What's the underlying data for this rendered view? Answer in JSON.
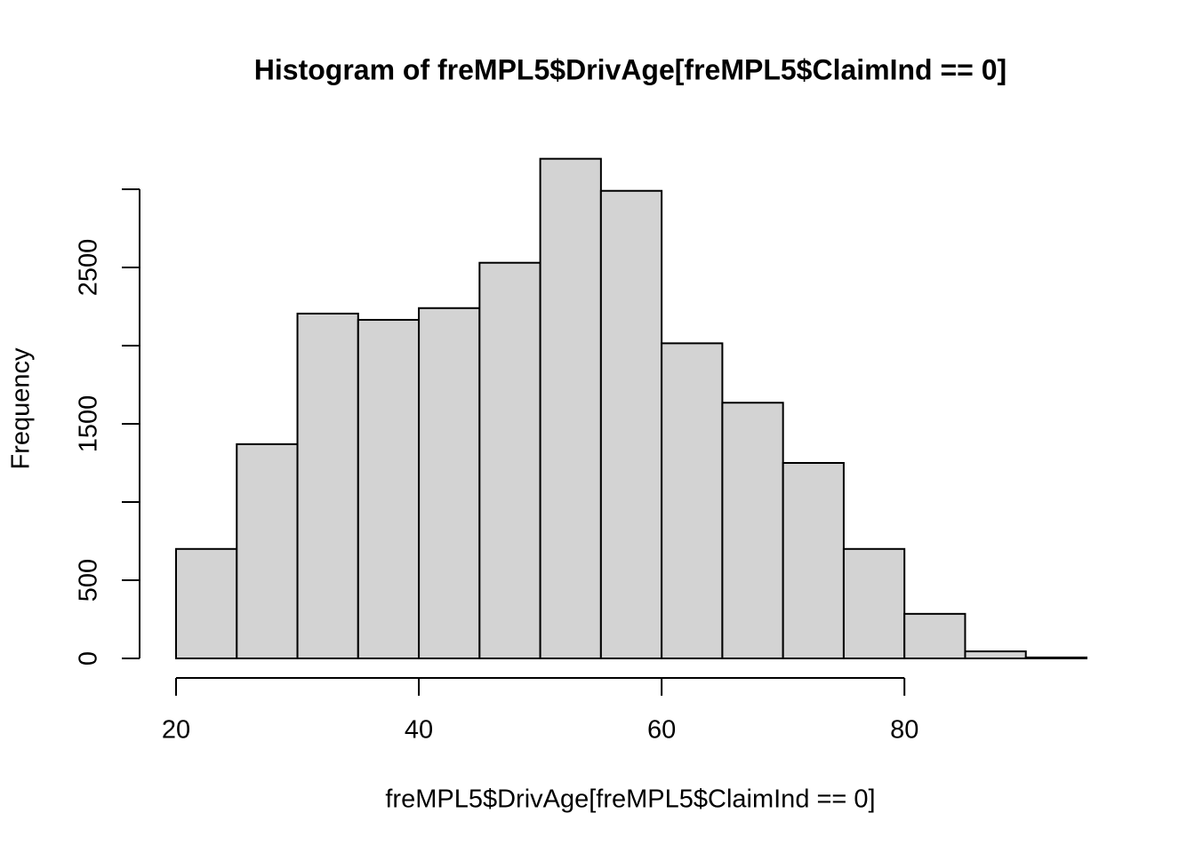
{
  "chart_data": {
    "type": "histogram",
    "title": "Histogram of freMPL5$DrivAge[freMPL5$ClaimInd == 0]",
    "x_label": "freMPL5$DrivAge[freMPL5$ClaimInd == 0]",
    "y_label": "Frequency",
    "bins": [
      20,
      25,
      30,
      35,
      40,
      45,
      50,
      55,
      60,
      65,
      70,
      75,
      80,
      85,
      90,
      95
    ],
    "values": [
      700,
      1370,
      2205,
      2165,
      2240,
      2530,
      3195,
      2990,
      2015,
      1635,
      1250,
      700,
      285,
      45,
      6
    ],
    "color": "#d3d3d3",
    "xlim": [
      20,
      95
    ],
    "xticks": [
      20,
      40,
      60,
      80
    ],
    "ylim": [
      0,
      3200
    ],
    "yticks": [
      0,
      500,
      {
        "value": 1000,
        "label": null
      },
      1500,
      {
        "value": 2000,
        "label": null
      },
      2500,
      {
        "value": 3000,
        "label": null
      }
    ]
  }
}
